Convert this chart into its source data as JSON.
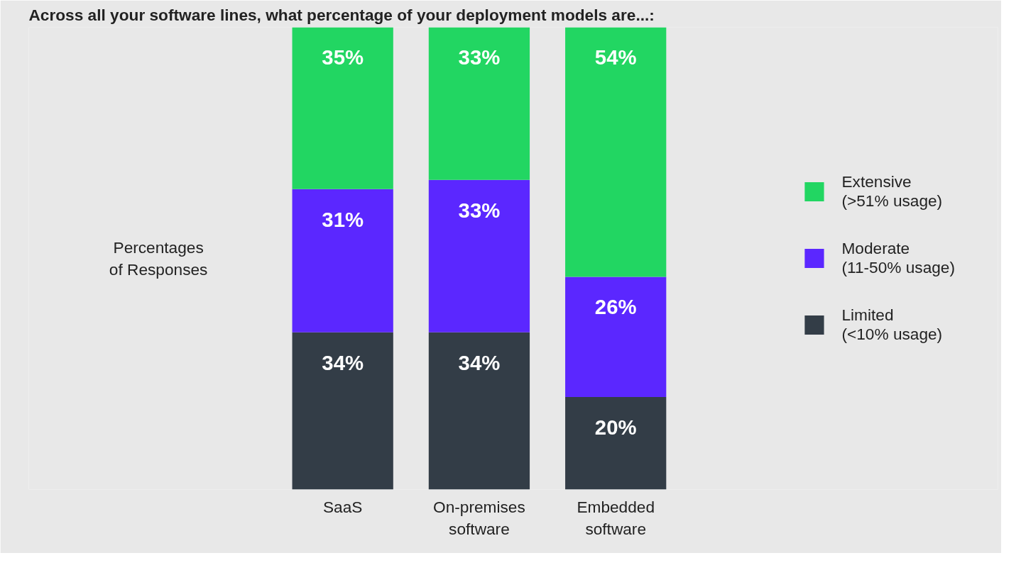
{
  "chart_data": {
    "type": "bar",
    "stacked": true,
    "title": "Across all your software lines, what percentage of your deployment models are...:",
    "ylabel": "Percentages of Responses",
    "categories": [
      "SaaS",
      "On-premises software",
      "Embedded software"
    ],
    "series": [
      {
        "name": "Limited (<10% usage)",
        "color": "#333d47",
        "values": [
          34,
          34,
          20
        ],
        "value_labels": [
          "34%",
          "34%",
          "20%"
        ]
      },
      {
        "name": "Moderate (11-50% usage)",
        "color": "#5b27ff",
        "values": [
          31,
          33,
          26
        ],
        "value_labels": [
          "31%",
          "33%",
          "26%"
        ]
      },
      {
        "name": "Extensive (>51% usage)",
        "color": "#22d662",
        "values": [
          35,
          33,
          54
        ],
        "value_labels": [
          "35%",
          "33%",
          "54%"
        ]
      }
    ],
    "ylim": [
      0,
      100
    ],
    "tick_labels": "x",
    "legend": "right"
  }
}
